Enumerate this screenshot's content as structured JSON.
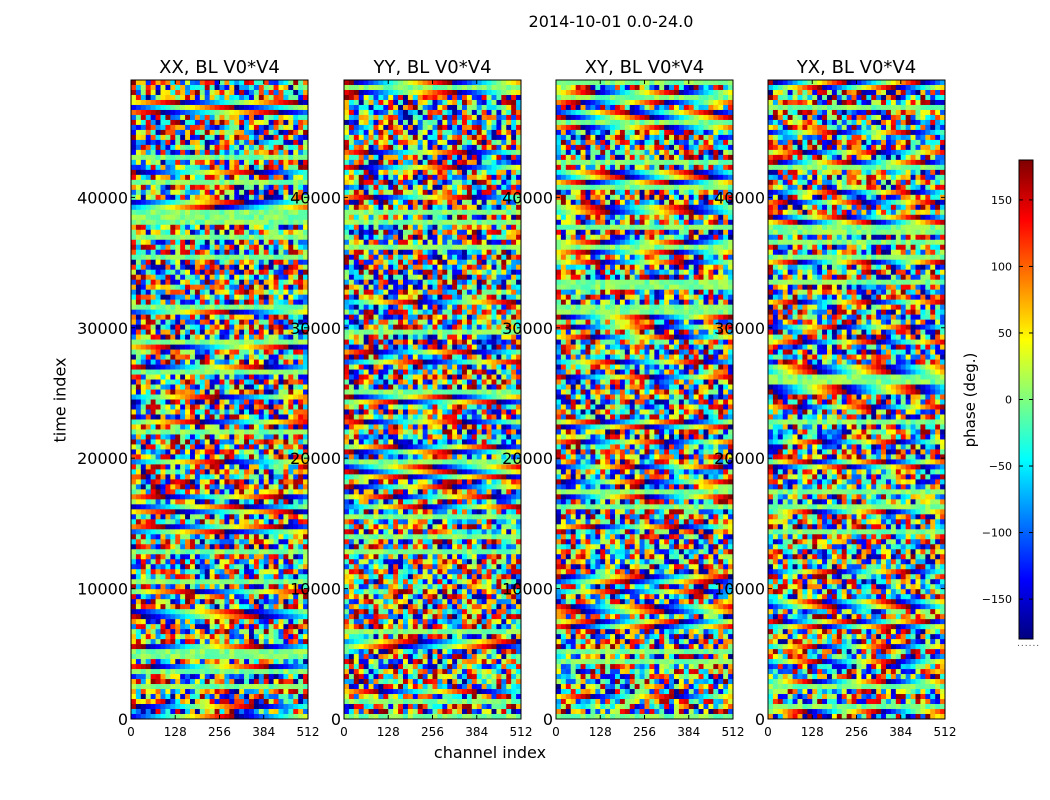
{
  "figure": {
    "title": "2014-10-01 0.0-24.0",
    "xlabel": "channel index",
    "ylabel": "time index",
    "colorbar_label": "phase (deg.)",
    "colorbar_footnote": "......"
  },
  "chart_data": {
    "type": "heatmap",
    "colormap": "jet",
    "colormap_colors": [
      "#00007f",
      "#0000ff",
      "#007fff",
      "#00ffff",
      "#7fff7f",
      "#ffff00",
      "#ff7f00",
      "#ff0000",
      "#7f0000"
    ],
    "xlim": [
      0,
      512
    ],
    "ylim": [
      0,
      49000
    ],
    "x_ticks": [
      0,
      128,
      256,
      384,
      512
    ],
    "y_ticks": [
      0,
      10000,
      20000,
      30000,
      40000
    ],
    "y_tick_labels": [
      "0",
      "10000",
      "20000",
      "30000",
      "40000"
    ],
    "value_range": [
      -180,
      180
    ],
    "colorbar_ticks": [
      150,
      100,
      50,
      0,
      -50,
      -100,
      -150
    ],
    "colorbar_tick_labels": [
      "150",
      "100",
      "50",
      "0",
      "−50",
      "−100",
      "−150"
    ],
    "panels": [
      {
        "title": "XX, BL V0*V4"
      },
      {
        "title": "YY, BL V0*V4"
      },
      {
        "title": "XY, BL V0*V4"
      },
      {
        "title": "YX, BL V0*V4"
      }
    ]
  }
}
